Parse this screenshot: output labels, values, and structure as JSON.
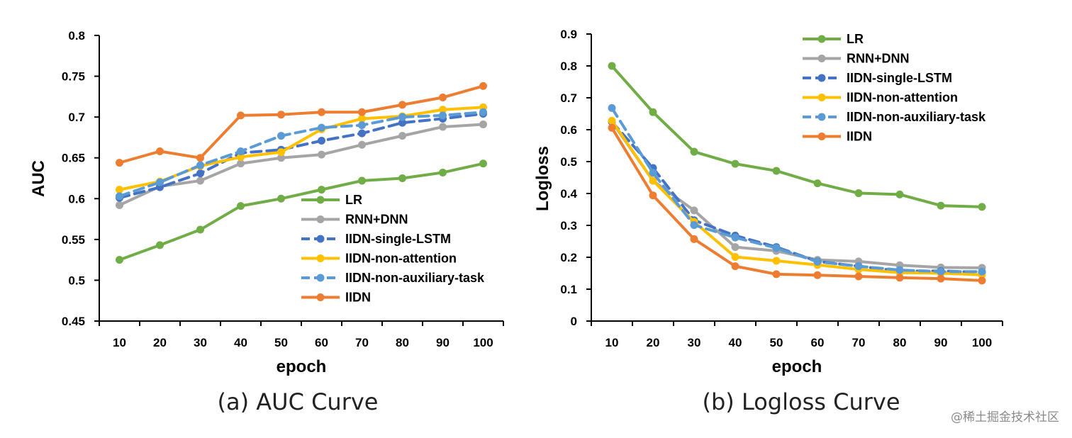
{
  "colors": {
    "LR": "#70AD47",
    "RNN+DNN": "#A5A5A5",
    "IIDN-single-LSTM": "#4472C4",
    "IIDN-non-attention": "#FFC000",
    "IIDN-non-auxiliary-task": "#5B9BD5",
    "IIDN": "#ED7D31"
  },
  "watermark": "@稀土掘金技术社区",
  "chart_data": [
    {
      "type": "line",
      "caption": "(a) AUC Curve",
      "xlabel": "epoch",
      "ylabel": "AUC",
      "x": [
        10,
        20,
        30,
        40,
        50,
        60,
        70,
        80,
        90,
        100
      ],
      "ylim": [
        0.45,
        0.8
      ],
      "yticks": [
        0.45,
        0.5,
        0.55,
        0.6,
        0.65,
        0.7,
        0.75,
        0.8
      ],
      "ytick_labels": [
        "0.45",
        "0.5",
        "0.55",
        "0.6",
        "0.65",
        "0.7",
        "0.75",
        "0.8"
      ],
      "legend_position": "lower-right",
      "series": [
        {
          "name": "LR",
          "dashed": false,
          "values": [
            0.525,
            0.543,
            0.562,
            0.591,
            0.6,
            0.611,
            0.622,
            0.625,
            0.632,
            0.643
          ]
        },
        {
          "name": "RNN+DNN",
          "dashed": false,
          "values": [
            0.592,
            0.615,
            0.622,
            0.643,
            0.65,
            0.654,
            0.666,
            0.677,
            0.688,
            0.691
          ]
        },
        {
          "name": "IIDN-single-LSTM",
          "dashed": true,
          "values": [
            0.601,
            0.614,
            0.631,
            0.656,
            0.66,
            0.671,
            0.68,
            0.693,
            0.698,
            0.704
          ]
        },
        {
          "name": "IIDN-non-attention",
          "dashed": false,
          "values": [
            0.611,
            0.621,
            0.64,
            0.651,
            0.657,
            0.685,
            0.698,
            0.701,
            0.709,
            0.712
          ]
        },
        {
          "name": "IIDN-non-auxiliary-task",
          "dashed": true,
          "values": [
            0.603,
            0.62,
            0.641,
            0.658,
            0.677,
            0.687,
            0.69,
            0.7,
            0.702,
            0.706
          ]
        },
        {
          "name": "IIDN",
          "dashed": false,
          "values": [
            0.644,
            0.658,
            0.65,
            0.702,
            0.703,
            0.706,
            0.706,
            0.715,
            0.724,
            0.738
          ]
        }
      ]
    },
    {
      "type": "line",
      "caption": "(b) Logloss Curve",
      "xlabel": "epoch",
      "ylabel": "Logloss",
      "x": [
        10,
        20,
        30,
        40,
        50,
        60,
        70,
        80,
        90,
        100
      ],
      "ylim": [
        0,
        0.9
      ],
      "yticks": [
        0,
        0.1,
        0.2,
        0.3,
        0.4,
        0.5,
        0.6,
        0.7,
        0.8,
        0.9
      ],
      "ytick_labels": [
        "0",
        "0.1",
        "0.2",
        "0.3",
        "0.4",
        "0.5",
        "0.6",
        "0.7",
        "0.8",
        "0.9"
      ],
      "legend_position": "top-right",
      "series": [
        {
          "name": "LR",
          "dashed": false,
          "values": [
            0.8,
            0.655,
            0.531,
            0.493,
            0.471,
            0.432,
            0.401,
            0.397,
            0.362,
            0.358
          ]
        },
        {
          "name": "RNN+DNN",
          "dashed": false,
          "values": [
            0.625,
            0.44,
            0.347,
            0.232,
            0.22,
            0.192,
            0.187,
            0.175,
            0.168,
            0.167
          ]
        },
        {
          "name": "IIDN-single-LSTM",
          "dashed": true,
          "values": [
            0.625,
            0.48,
            0.316,
            0.268,
            0.232,
            0.187,
            0.172,
            0.157,
            0.157,
            0.153
          ]
        },
        {
          "name": "IIDN-non-attention",
          "dashed": false,
          "values": [
            0.628,
            0.44,
            0.311,
            0.201,
            0.189,
            0.176,
            0.162,
            0.152,
            0.15,
            0.145
          ]
        },
        {
          "name": "IIDN-non-auxiliary-task",
          "dashed": true,
          "values": [
            0.668,
            0.465,
            0.301,
            0.262,
            0.229,
            0.186,
            0.172,
            0.16,
            0.155,
            0.155
          ]
        },
        {
          "name": "IIDN",
          "dashed": false,
          "values": [
            0.606,
            0.394,
            0.257,
            0.172,
            0.147,
            0.144,
            0.14,
            0.136,
            0.133,
            0.127
          ]
        }
      ]
    }
  ]
}
